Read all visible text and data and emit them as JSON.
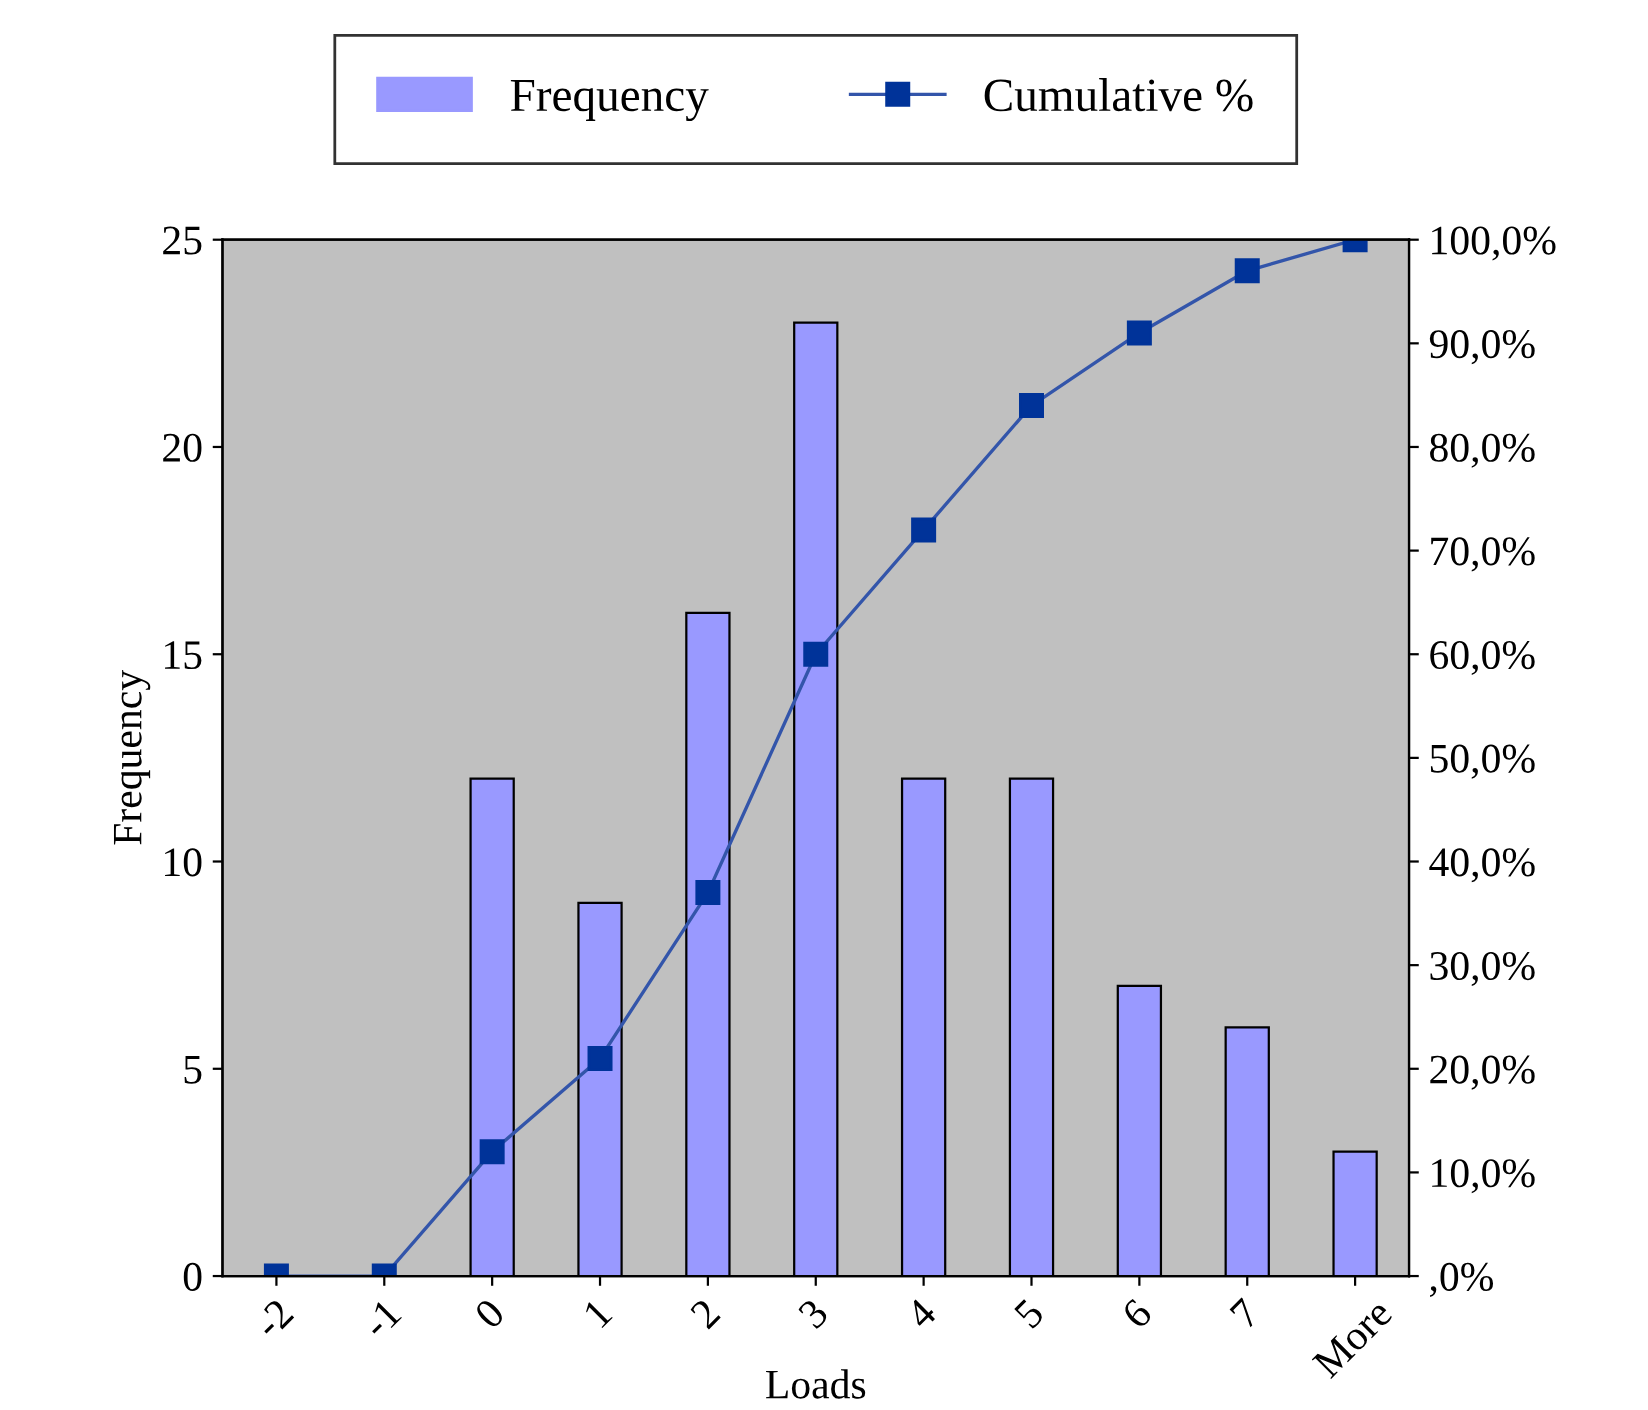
{
  "chart_data": {
    "type": "bar",
    "xlabel": "Loads",
    "ylabel": "Frequency",
    "categories": [
      "-2",
      "-1",
      "0",
      "1",
      "2",
      "3",
      "4",
      "5",
      "6",
      "7",
      "More"
    ],
    "series": [
      {
        "name": "Frequency",
        "color": "#9999ff",
        "values": [
          0,
          0,
          12,
          9,
          16,
          23,
          12,
          12,
          7,
          6,
          3
        ]
      },
      {
        "name": "Cumulative %",
        "type": "line",
        "axis": "y2",
        "color": "#3355aa",
        "values": [
          0,
          0,
          12,
          21,
          37,
          60,
          72,
          84,
          91,
          97,
          100
        ]
      }
    ],
    "ylim": [
      0,
      25
    ],
    "yticks": [
      0,
      5,
      10,
      15,
      20,
      25
    ],
    "y2lim": [
      0,
      100
    ],
    "y2ticks": [
      {
        "value": 0,
        "label": ",0%"
      },
      {
        "value": 10,
        "label": "10,0%"
      },
      {
        "value": 20,
        "label": "20,0%"
      },
      {
        "value": 30,
        "label": "30,0%"
      },
      {
        "value": 40,
        "label": "40,0%"
      },
      {
        "value": 50,
        "label": "50,0%"
      },
      {
        "value": 60,
        "label": "60,0%"
      },
      {
        "value": 70,
        "label": "70,0%"
      },
      {
        "value": 80,
        "label": "80,0%"
      },
      {
        "value": 90,
        "label": "90,0%"
      },
      {
        "value": 100,
        "label": "100,0%"
      }
    ],
    "marker": "square",
    "legend": "top",
    "grid": false
  }
}
